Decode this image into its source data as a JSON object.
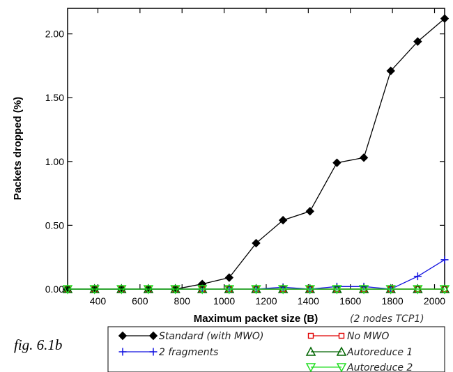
{
  "caption": "fig. 6.1b",
  "chart_data": {
    "type": "line",
    "xlabel": "Maximum packet size (B)",
    "ylabel": "Packets dropped (%)",
    "note": "(2 nodes TCP1)",
    "xlim": [
      256,
      2048
    ],
    "ylim": [
      0,
      2.2
    ],
    "xticks": [
      400,
      600,
      800,
      1000,
      1200,
      1400,
      1600,
      1800,
      2000
    ],
    "yticks": [
      0,
      0.5,
      1.0,
      1.5,
      2.0
    ],
    "ytick_labels": [
      "0.00",
      "0.50",
      "1.00",
      "1.50",
      "2.00"
    ],
    "grid": false,
    "legend_position": "bottom",
    "x": [
      256,
      384,
      512,
      640,
      768,
      896,
      1024,
      1152,
      1280,
      1408,
      1536,
      1664,
      1792,
      1920,
      2048
    ],
    "series": [
      {
        "name": "Standard (with MWO)",
        "color": "#000000",
        "marker": "diamond",
        "values": [
          0,
          0,
          0,
          0,
          0,
          0.04,
          0.09,
          0.36,
          0.54,
          0.61,
          0.99,
          1.03,
          1.71,
          1.94,
          2.12
        ]
      },
      {
        "name": "No MWO",
        "color": "#e00000",
        "marker": "square",
        "values": [
          0,
          0,
          0,
          0,
          0,
          0,
          0,
          0,
          0,
          0,
          0,
          0,
          0,
          0,
          0
        ]
      },
      {
        "name": "2 fragments",
        "color": "#1010e0",
        "marker": "plus",
        "values": [
          0,
          0,
          0,
          0,
          0,
          0,
          0,
          0,
          0.015,
          0,
          0.02,
          0.02,
          0,
          0.1,
          0.23
        ]
      },
      {
        "name": "Autoreduce 1",
        "color": "#006400",
        "marker": "triangle-up",
        "values": [
          0,
          0,
          0,
          0,
          0,
          0,
          0,
          0,
          0,
          0,
          0,
          0,
          0,
          0,
          0
        ]
      },
      {
        "name": "Autoreduce 2",
        "color": "#22dd22",
        "marker": "triangle-down",
        "values": [
          0,
          0,
          0,
          0,
          0,
          0,
          0,
          0,
          0,
          0,
          0,
          0,
          0,
          0,
          0
        ]
      }
    ]
  }
}
